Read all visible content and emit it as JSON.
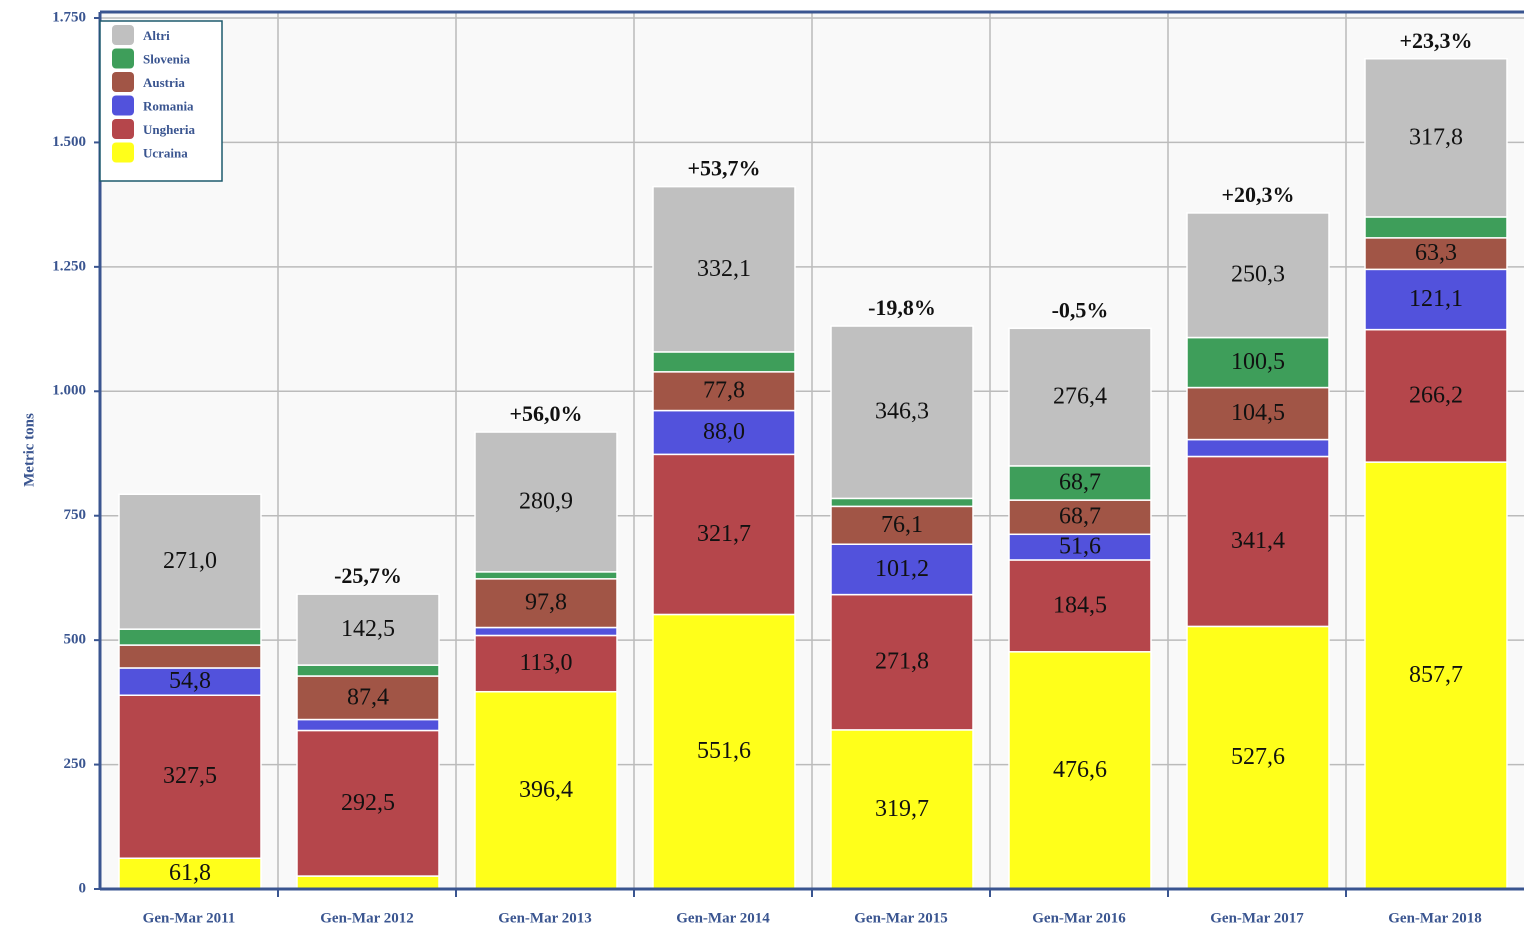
{
  "chart_data": {
    "type": "stacked_bar",
    "y_label": "Metric tons",
    "categories": [
      "Gen-Mar 2011",
      "Gen-Mar 2012",
      "Gen-Mar 2013",
      "Gen-Mar 2014",
      "Gen-Mar 2015",
      "Gen-Mar 2016",
      "Gen-Mar 2017",
      "Gen-Mar 2018"
    ],
    "annotations": [
      null,
      "-25,7%",
      "+56,0%",
      "+53,7%",
      "-19,8%",
      "-0,5%",
      "+20,3%",
      "+23,3%"
    ],
    "series": [
      {
        "name": "Ucraina",
        "color": "#ffff1a",
        "values": [
          61.8,
          26,
          396.4,
          551.6,
          319.7,
          476.6,
          527.6,
          857.7
        ],
        "value_labels": [
          "61,8",
          null,
          "396,4",
          "551,6",
          "319,7",
          "476,6",
          "527,6",
          "857,7"
        ]
      },
      {
        "name": "Ungheria",
        "color": "#b5464b",
        "values": [
          327.5,
          292.5,
          113.0,
          321.7,
          271.8,
          184.5,
          341.4,
          266.2
        ],
        "value_labels": [
          "327,5",
          "292,5",
          "113,0",
          "321,7",
          "271,8",
          "184,5",
          "341,4",
          "266,2"
        ]
      },
      {
        "name": "Romania",
        "color": "#5252dc",
        "values": [
          54.8,
          22,
          16,
          88.0,
          101.2,
          51.6,
          34,
          121.1
        ],
        "value_labels": [
          "54,8",
          null,
          null,
          "88,0",
          "101,2",
          "51,6",
          null,
          "121,1"
        ]
      },
      {
        "name": "Austria",
        "color": "#a15546",
        "values": [
          46,
          87.4,
          97.8,
          77.8,
          76.1,
          68.7,
          104.5,
          63.3
        ],
        "value_labels": [
          null,
          "87,4",
          "97,8",
          "77,8",
          "76,1",
          "68,7",
          "104,5",
          "63,3"
        ]
      },
      {
        "name": "Slovenia",
        "color": "#3e9e5a",
        "values": [
          32,
          22,
          14,
          40,
          16,
          68.7,
          100.5,
          42
        ],
        "value_labels": [
          null,
          null,
          null,
          null,
          null,
          "68,7",
          "100,5",
          null
        ]
      },
      {
        "name": "Altri",
        "color": "#c0c0c0",
        "values": [
          271.0,
          142.5,
          280.9,
          332.1,
          346.3,
          276.4,
          250.3,
          317.8
        ],
        "value_labels": [
          "271,0",
          "142,5",
          "280,9",
          "332,1",
          "346,3",
          "276,4",
          "250,3",
          "317,8"
        ]
      }
    ],
    "ylim": [
      0,
      1750
    ],
    "yticks": [
      0,
      250,
      500,
      750,
      {
        "value": 1000,
        "label": "1.000"
      },
      {
        "value": 1250,
        "label": "1.250"
      },
      {
        "value": 1500,
        "label": "1.500"
      },
      {
        "value": 1750,
        "label": "1.750"
      }
    ],
    "grid": true,
    "legend": "top-left"
  }
}
